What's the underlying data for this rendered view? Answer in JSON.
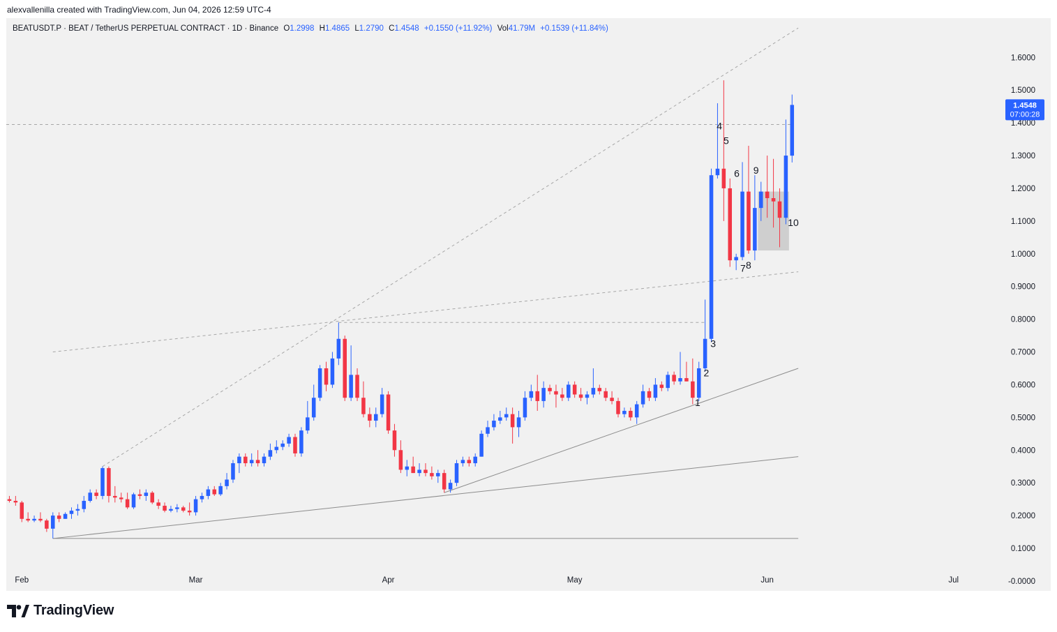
{
  "header": {
    "attribution": "alexvallenilla created with TradingView.com, Jun 04, 2026 12:59 UTC-4"
  },
  "legend": {
    "symbol": "BEATUSDT.P · BEAT / TetherUS PERPETUAL CONTRACT · 1D · Binance",
    "open_label": "O",
    "open_value": "1.2998",
    "high_label": "H",
    "high_value": "1.4865",
    "low_label": "L",
    "low_value": "1.2790",
    "close_label": "C",
    "close_value": "1.4548",
    "change": "+0.1550 (+11.92%)",
    "vol_label": "Vol",
    "vol_value": "41.79M",
    "vol_change": "+0.1539 (+11.84%)"
  },
  "price_tag": {
    "price": "1.4548",
    "countdown": "07:00:28"
  },
  "footer": {
    "brand": "TradingView",
    "logo_icon": "tradingview-logo-icon"
  },
  "colors": {
    "up": "#2962ff",
    "down": "#f23645",
    "background": "#f1f1f1",
    "trendline": "#9e9e9e"
  },
  "chart_data": {
    "type": "candlestick",
    "timeframe": "1D",
    "y_axis": {
      "ticks": [
        "1.6000",
        "1.5000",
        "1.4000",
        "1.3000",
        "1.2000",
        "1.1000",
        "1.0000",
        "0.9000",
        "0.8000",
        "0.7000",
        "0.6000",
        "0.5000",
        "0.4000",
        "0.3000",
        "0.2000",
        "0.1000",
        "-0.0000"
      ],
      "range": [
        -0.03,
        1.72
      ],
      "position": "right"
    },
    "x_axis": {
      "labels": [
        "Feb",
        "Mar",
        "Apr",
        "May",
        "Jun",
        "Jul"
      ],
      "label_days": [
        1,
        29,
        60,
        90,
        121,
        151
      ],
      "range_days": [
        -1.5,
        159
      ]
    },
    "grid": false,
    "candles": [
      {
        "d": -1,
        "o": 0.25,
        "h": 0.26,
        "l": 0.24,
        "c": 0.245
      },
      {
        "d": 0,
        "o": 0.245,
        "h": 0.26,
        "l": 0.23,
        "c": 0.24
      },
      {
        "d": 1,
        "o": 0.24,
        "h": 0.245,
        "l": 0.18,
        "c": 0.19
      },
      {
        "d": 2,
        "o": 0.19,
        "h": 0.21,
        "l": 0.18,
        "c": 0.185
      },
      {
        "d": 3,
        "o": 0.185,
        "h": 0.2,
        "l": 0.18,
        "c": 0.19
      },
      {
        "d": 4,
        "o": 0.19,
        "h": 0.21,
        "l": 0.18,
        "c": 0.185
      },
      {
        "d": 5,
        "o": 0.185,
        "h": 0.19,
        "l": 0.15,
        "c": 0.16
      },
      {
        "d": 6,
        "o": 0.16,
        "h": 0.21,
        "l": 0.13,
        "c": 0.2
      },
      {
        "d": 7,
        "o": 0.2,
        "h": 0.21,
        "l": 0.18,
        "c": 0.19
      },
      {
        "d": 8,
        "o": 0.19,
        "h": 0.21,
        "l": 0.19,
        "c": 0.205
      },
      {
        "d": 9,
        "o": 0.205,
        "h": 0.225,
        "l": 0.19,
        "c": 0.215
      },
      {
        "d": 10,
        "o": 0.215,
        "h": 0.235,
        "l": 0.2,
        "c": 0.22
      },
      {
        "d": 11,
        "o": 0.22,
        "h": 0.26,
        "l": 0.21,
        "c": 0.245
      },
      {
        "d": 12,
        "o": 0.245,
        "h": 0.28,
        "l": 0.24,
        "c": 0.27
      },
      {
        "d": 13,
        "o": 0.27,
        "h": 0.28,
        "l": 0.25,
        "c": 0.26
      },
      {
        "d": 14,
        "o": 0.26,
        "h": 0.35,
        "l": 0.25,
        "c": 0.345
      },
      {
        "d": 15,
        "o": 0.345,
        "h": 0.35,
        "l": 0.24,
        "c": 0.26
      },
      {
        "d": 16,
        "o": 0.26,
        "h": 0.29,
        "l": 0.24,
        "c": 0.255
      },
      {
        "d": 17,
        "o": 0.255,
        "h": 0.27,
        "l": 0.24,
        "c": 0.25
      },
      {
        "d": 18,
        "o": 0.25,
        "h": 0.27,
        "l": 0.22,
        "c": 0.225
      },
      {
        "d": 19,
        "o": 0.225,
        "h": 0.27,
        "l": 0.22,
        "c": 0.265
      },
      {
        "d": 20,
        "o": 0.265,
        "h": 0.28,
        "l": 0.25,
        "c": 0.26
      },
      {
        "d": 21,
        "o": 0.26,
        "h": 0.28,
        "l": 0.245,
        "c": 0.27
      },
      {
        "d": 22,
        "o": 0.27,
        "h": 0.275,
        "l": 0.235,
        "c": 0.24
      },
      {
        "d": 23,
        "o": 0.24,
        "h": 0.25,
        "l": 0.22,
        "c": 0.23
      },
      {
        "d": 24,
        "o": 0.23,
        "h": 0.24,
        "l": 0.21,
        "c": 0.215
      },
      {
        "d": 25,
        "o": 0.215,
        "h": 0.23,
        "l": 0.21,
        "c": 0.22
      },
      {
        "d": 26,
        "o": 0.22,
        "h": 0.235,
        "l": 0.21,
        "c": 0.225
      },
      {
        "d": 27,
        "o": 0.225,
        "h": 0.23,
        "l": 0.21,
        "c": 0.215
      },
      {
        "d": 28,
        "o": 0.215,
        "h": 0.24,
        "l": 0.2,
        "c": 0.21
      },
      {
        "d": 29,
        "o": 0.21,
        "h": 0.26,
        "l": 0.2,
        "c": 0.25
      },
      {
        "d": 30,
        "o": 0.25,
        "h": 0.27,
        "l": 0.24,
        "c": 0.26
      },
      {
        "d": 31,
        "o": 0.26,
        "h": 0.29,
        "l": 0.25,
        "c": 0.28
      },
      {
        "d": 32,
        "o": 0.28,
        "h": 0.29,
        "l": 0.26,
        "c": 0.265
      },
      {
        "d": 33,
        "o": 0.265,
        "h": 0.3,
        "l": 0.26,
        "c": 0.29
      },
      {
        "d": 34,
        "o": 0.29,
        "h": 0.33,
        "l": 0.28,
        "c": 0.31
      },
      {
        "d": 35,
        "o": 0.31,
        "h": 0.37,
        "l": 0.3,
        "c": 0.36
      },
      {
        "d": 36,
        "o": 0.36,
        "h": 0.39,
        "l": 0.33,
        "c": 0.38
      },
      {
        "d": 37,
        "o": 0.38,
        "h": 0.39,
        "l": 0.35,
        "c": 0.36
      },
      {
        "d": 38,
        "o": 0.36,
        "h": 0.39,
        "l": 0.35,
        "c": 0.37
      },
      {
        "d": 39,
        "o": 0.37,
        "h": 0.4,
        "l": 0.35,
        "c": 0.36
      },
      {
        "d": 40,
        "o": 0.36,
        "h": 0.39,
        "l": 0.35,
        "c": 0.38
      },
      {
        "d": 41,
        "o": 0.38,
        "h": 0.42,
        "l": 0.37,
        "c": 0.4
      },
      {
        "d": 42,
        "o": 0.4,
        "h": 0.43,
        "l": 0.39,
        "c": 0.41
      },
      {
        "d": 43,
        "o": 0.41,
        "h": 0.43,
        "l": 0.4,
        "c": 0.42
      },
      {
        "d": 44,
        "o": 0.42,
        "h": 0.45,
        "l": 0.41,
        "c": 0.44
      },
      {
        "d": 45,
        "o": 0.44,
        "h": 0.45,
        "l": 0.38,
        "c": 0.39
      },
      {
        "d": 46,
        "o": 0.39,
        "h": 0.47,
        "l": 0.38,
        "c": 0.46
      },
      {
        "d": 47,
        "o": 0.46,
        "h": 0.55,
        "l": 0.45,
        "c": 0.5
      },
      {
        "d": 48,
        "o": 0.5,
        "h": 0.6,
        "l": 0.49,
        "c": 0.56
      },
      {
        "d": 49,
        "o": 0.56,
        "h": 0.66,
        "l": 0.55,
        "c": 0.65
      },
      {
        "d": 50,
        "o": 0.65,
        "h": 0.67,
        "l": 0.58,
        "c": 0.6
      },
      {
        "d": 51,
        "o": 0.6,
        "h": 0.7,
        "l": 0.59,
        "c": 0.68
      },
      {
        "d": 52,
        "o": 0.68,
        "h": 0.79,
        "l": 0.66,
        "c": 0.74
      },
      {
        "d": 53,
        "o": 0.74,
        "h": 0.75,
        "l": 0.55,
        "c": 0.56
      },
      {
        "d": 54,
        "o": 0.56,
        "h": 0.72,
        "l": 0.55,
        "c": 0.63
      },
      {
        "d": 55,
        "o": 0.63,
        "h": 0.65,
        "l": 0.55,
        "c": 0.56
      },
      {
        "d": 56,
        "o": 0.56,
        "h": 0.61,
        "l": 0.5,
        "c": 0.51
      },
      {
        "d": 57,
        "o": 0.51,
        "h": 0.53,
        "l": 0.47,
        "c": 0.49
      },
      {
        "d": 58,
        "o": 0.49,
        "h": 0.53,
        "l": 0.47,
        "c": 0.51
      },
      {
        "d": 59,
        "o": 0.51,
        "h": 0.59,
        "l": 0.5,
        "c": 0.57
      },
      {
        "d": 60,
        "o": 0.57,
        "h": 0.58,
        "l": 0.45,
        "c": 0.46
      },
      {
        "d": 61,
        "o": 0.46,
        "h": 0.48,
        "l": 0.38,
        "c": 0.4
      },
      {
        "d": 62,
        "o": 0.4,
        "h": 0.43,
        "l": 0.33,
        "c": 0.34
      },
      {
        "d": 63,
        "o": 0.34,
        "h": 0.37,
        "l": 0.32,
        "c": 0.35
      },
      {
        "d": 64,
        "o": 0.35,
        "h": 0.38,
        "l": 0.33,
        "c": 0.33
      },
      {
        "d": 65,
        "o": 0.33,
        "h": 0.36,
        "l": 0.32,
        "c": 0.34
      },
      {
        "d": 66,
        "o": 0.34,
        "h": 0.36,
        "l": 0.32,
        "c": 0.33
      },
      {
        "d": 67,
        "o": 0.33,
        "h": 0.35,
        "l": 0.31,
        "c": 0.32
      },
      {
        "d": 68,
        "o": 0.32,
        "h": 0.34,
        "l": 0.3,
        "c": 0.33
      },
      {
        "d": 69,
        "o": 0.33,
        "h": 0.34,
        "l": 0.27,
        "c": 0.28
      },
      {
        "d": 70,
        "o": 0.28,
        "h": 0.31,
        "l": 0.27,
        "c": 0.3
      },
      {
        "d": 71,
        "o": 0.3,
        "h": 0.37,
        "l": 0.29,
        "c": 0.36
      },
      {
        "d": 72,
        "o": 0.36,
        "h": 0.38,
        "l": 0.35,
        "c": 0.37
      },
      {
        "d": 73,
        "o": 0.37,
        "h": 0.38,
        "l": 0.35,
        "c": 0.36
      },
      {
        "d": 74,
        "o": 0.36,
        "h": 0.39,
        "l": 0.35,
        "c": 0.38
      },
      {
        "d": 75,
        "o": 0.38,
        "h": 0.46,
        "l": 0.38,
        "c": 0.45
      },
      {
        "d": 76,
        "o": 0.45,
        "h": 0.49,
        "l": 0.44,
        "c": 0.47
      },
      {
        "d": 77,
        "o": 0.47,
        "h": 0.51,
        "l": 0.46,
        "c": 0.49
      },
      {
        "d": 78,
        "o": 0.49,
        "h": 0.52,
        "l": 0.48,
        "c": 0.5
      },
      {
        "d": 79,
        "o": 0.5,
        "h": 0.53,
        "l": 0.49,
        "c": 0.51
      },
      {
        "d": 80,
        "o": 0.51,
        "h": 0.53,
        "l": 0.42,
        "c": 0.47
      },
      {
        "d": 81,
        "o": 0.47,
        "h": 0.52,
        "l": 0.44,
        "c": 0.5
      },
      {
        "d": 82,
        "o": 0.5,
        "h": 0.58,
        "l": 0.49,
        "c": 0.56
      },
      {
        "d": 83,
        "o": 0.56,
        "h": 0.6,
        "l": 0.55,
        "c": 0.58
      },
      {
        "d": 84,
        "o": 0.58,
        "h": 0.63,
        "l": 0.52,
        "c": 0.55
      },
      {
        "d": 85,
        "o": 0.55,
        "h": 0.61,
        "l": 0.53,
        "c": 0.59
      },
      {
        "d": 86,
        "o": 0.59,
        "h": 0.6,
        "l": 0.57,
        "c": 0.58
      },
      {
        "d": 87,
        "o": 0.58,
        "h": 0.6,
        "l": 0.53,
        "c": 0.57
      },
      {
        "d": 88,
        "o": 0.57,
        "h": 0.59,
        "l": 0.55,
        "c": 0.56
      },
      {
        "d": 89,
        "o": 0.56,
        "h": 0.61,
        "l": 0.55,
        "c": 0.6
      },
      {
        "d": 90,
        "o": 0.6,
        "h": 0.61,
        "l": 0.56,
        "c": 0.57
      },
      {
        "d": 91,
        "o": 0.57,
        "h": 0.59,
        "l": 0.55,
        "c": 0.56
      },
      {
        "d": 92,
        "o": 0.56,
        "h": 0.58,
        "l": 0.54,
        "c": 0.57
      },
      {
        "d": 93,
        "o": 0.57,
        "h": 0.65,
        "l": 0.56,
        "c": 0.59
      },
      {
        "d": 94,
        "o": 0.59,
        "h": 0.6,
        "l": 0.57,
        "c": 0.58
      },
      {
        "d": 95,
        "o": 0.58,
        "h": 0.59,
        "l": 0.55,
        "c": 0.56
      },
      {
        "d": 96,
        "o": 0.56,
        "h": 0.58,
        "l": 0.54,
        "c": 0.55
      },
      {
        "d": 97,
        "o": 0.55,
        "h": 0.56,
        "l": 0.5,
        "c": 0.51
      },
      {
        "d": 98,
        "o": 0.51,
        "h": 0.53,
        "l": 0.5,
        "c": 0.52
      },
      {
        "d": 99,
        "o": 0.52,
        "h": 0.53,
        "l": 0.49,
        "c": 0.5
      },
      {
        "d": 100,
        "o": 0.5,
        "h": 0.55,
        "l": 0.48,
        "c": 0.54
      },
      {
        "d": 101,
        "o": 0.54,
        "h": 0.6,
        "l": 0.53,
        "c": 0.58
      },
      {
        "d": 102,
        "o": 0.58,
        "h": 0.59,
        "l": 0.55,
        "c": 0.56
      },
      {
        "d": 103,
        "o": 0.56,
        "h": 0.62,
        "l": 0.55,
        "c": 0.6
      },
      {
        "d": 104,
        "o": 0.6,
        "h": 0.61,
        "l": 0.58,
        "c": 0.59
      },
      {
        "d": 105,
        "o": 0.59,
        "h": 0.64,
        "l": 0.58,
        "c": 0.63
      },
      {
        "d": 106,
        "o": 0.63,
        "h": 0.64,
        "l": 0.6,
        "c": 0.61
      },
      {
        "d": 107,
        "o": 0.61,
        "h": 0.7,
        "l": 0.6,
        "c": 0.62
      },
      {
        "d": 108,
        "o": 0.62,
        "h": 0.67,
        "l": 0.61,
        "c": 0.61
      },
      {
        "d": 109,
        "o": 0.61,
        "h": 0.68,
        "l": 0.54,
        "c": 0.56
      },
      {
        "d": 110,
        "o": 0.56,
        "h": 0.67,
        "l": 0.55,
        "c": 0.65
      },
      {
        "d": 111,
        "o": 0.65,
        "h": 0.86,
        "l": 0.64,
        "c": 0.74
      },
      {
        "d": 112,
        "o": 0.74,
        "h": 1.26,
        "l": 0.73,
        "c": 1.24
      },
      {
        "d": 113,
        "o": 1.24,
        "h": 1.46,
        "l": 1.23,
        "c": 1.26
      },
      {
        "d": 114,
        "o": 1.26,
        "h": 1.53,
        "l": 1.1,
        "c": 1.2
      },
      {
        "d": 115,
        "o": 1.2,
        "h": 1.23,
        "l": 0.96,
        "c": 0.98
      },
      {
        "d": 116,
        "o": 0.98,
        "h": 1.0,
        "l": 0.95,
        "c": 0.99
      },
      {
        "d": 117,
        "o": 0.99,
        "h": 1.28,
        "l": 0.98,
        "c": 1.19
      },
      {
        "d": 118,
        "o": 1.19,
        "h": 1.33,
        "l": 1.0,
        "c": 1.01
      },
      {
        "d": 119,
        "o": 1.01,
        "h": 1.24,
        "l": 0.98,
        "c": 1.14
      },
      {
        "d": 120,
        "o": 1.14,
        "h": 1.22,
        "l": 1.1,
        "c": 1.19
      },
      {
        "d": 121,
        "o": 1.19,
        "h": 1.3,
        "l": 1.11,
        "c": 1.17
      },
      {
        "d": 122,
        "o": 1.17,
        "h": 1.29,
        "l": 1.08,
        "c": 1.16
      },
      {
        "d": 123,
        "o": 1.16,
        "h": 1.2,
        "l": 1.02,
        "c": 1.11
      },
      {
        "d": 124,
        "o": 1.11,
        "h": 1.41,
        "l": 1.09,
        "c": 1.3
      },
      {
        "d": 125,
        "o": 1.2998,
        "h": 1.4865,
        "l": 1.279,
        "c": 1.4548
      }
    ],
    "annotations": [
      {
        "text": "1",
        "d": 109.8,
        "y": 0.535
      },
      {
        "text": "2",
        "d": 111.2,
        "y": 0.625
      },
      {
        "text": "3",
        "d": 112.3,
        "y": 0.715
      },
      {
        "text": "4",
        "d": 113.3,
        "y": 1.38
      },
      {
        "text": "5",
        "d": 114.4,
        "y": 1.335
      },
      {
        "text": "6",
        "d": 116.1,
        "y": 1.235
      },
      {
        "text": "7",
        "d": 117.1,
        "y": 0.945
      },
      {
        "text": "8",
        "d": 118.0,
        "y": 0.955
      },
      {
        "text": "9",
        "d": 119.2,
        "y": 1.245
      },
      {
        "text": "10",
        "d": 125.2,
        "y": 1.085
      }
    ],
    "lines": [
      {
        "d1": 6,
        "y1": 0.13,
        "d2": 126,
        "y2": 0.13,
        "style": "solid"
      },
      {
        "d1": 6,
        "y1": 0.13,
        "d2": 126,
        "y2": 0.38,
        "style": "solid"
      },
      {
        "d1": 69,
        "y1": 0.27,
        "d2": 126,
        "y2": 0.65,
        "style": "solid"
      },
      {
        "d1": 14,
        "y1": 0.35,
        "d2": 126,
        "y2": 1.69,
        "style": "dashed"
      },
      {
        "d1": 6,
        "y1": 0.7,
        "d2": 126,
        "y2": 0.945,
        "style": "dashed"
      },
      {
        "d1": 52,
        "y1": 0.79,
        "d2": 111,
        "y2": 0.79,
        "style": "dashed"
      },
      {
        "d1": -1.5,
        "y1": 1.395,
        "d2": 125,
        "y2": 1.395,
        "style": "dashed"
      }
    ],
    "rectangles": [
      {
        "d1": 119.5,
        "d2": 124.5,
        "y_top": 1.19,
        "y_bottom": 1.01
      }
    ]
  }
}
